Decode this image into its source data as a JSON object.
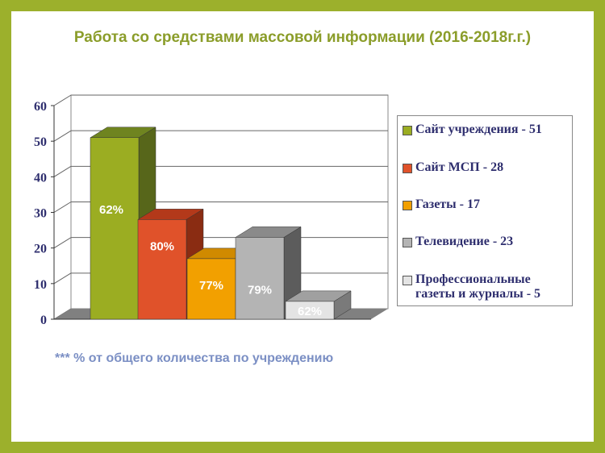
{
  "chart_data": {
    "type": "bar",
    "title": "Работа со средствами массовой информации (2016-2018г.г.)",
    "categories": [
      "Сайт учреждения - 51",
      "Сайт МСП - 28",
      "Газеты - 17",
      "Телевидение - 23",
      "Профессиональные газеты и журналы - 5"
    ],
    "values": [
      51,
      28,
      17,
      23,
      5
    ],
    "data_labels": [
      "62%",
      "80%",
      "77%",
      "79%",
      "62%"
    ],
    "colors": [
      "#9bad22",
      "#e0522a",
      "#f2a000",
      "#b4b4b4",
      "#e4e4e4"
    ],
    "side_colors": [
      "#57661a",
      "#8a2c12",
      "#c07a00",
      "#5c5c5c",
      "#7a7a7a"
    ],
    "top_colors": [
      "#6f8420",
      "#b3391a",
      "#d08a00",
      "#8a8a8a",
      "#a0a0a0"
    ],
    "yticks": [
      0,
      10,
      20,
      30,
      40,
      50,
      60
    ],
    "ylim": [
      0,
      60
    ],
    "grid": true,
    "legend_position": "right",
    "xlabel": "",
    "ylabel": ""
  },
  "footnote": "*** % от общего количества по учреждению"
}
